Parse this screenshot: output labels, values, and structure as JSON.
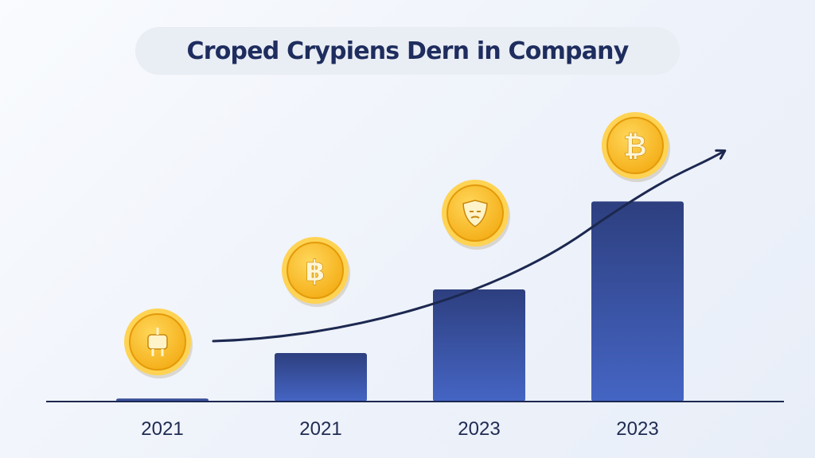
{
  "chart_data": {
    "type": "bar",
    "title": "Croped Crypiens Dern in Company",
    "categories": [
      "2021",
      "2021",
      "2023",
      "2023"
    ],
    "values": [
      0.5,
      8,
      18.5,
      33
    ],
    "ylim": [
      0,
      40
    ],
    "grid": false,
    "legend": "none",
    "trend_arrow": true,
    "coin_icons": [
      "robot-coin-icon",
      "baht-coin-icon",
      "shield-coin-icon",
      "bitcoin-coin-icon"
    ],
    "colors": {
      "bar_top": "#2d3f7f",
      "bar_bottom": "#4565c4",
      "coin_fill": "#f4ad16",
      "coin_rim": "#ffd353",
      "axis": "#1c2850",
      "arrow": "#1c2850",
      "title": "#1e2d5e"
    }
  }
}
